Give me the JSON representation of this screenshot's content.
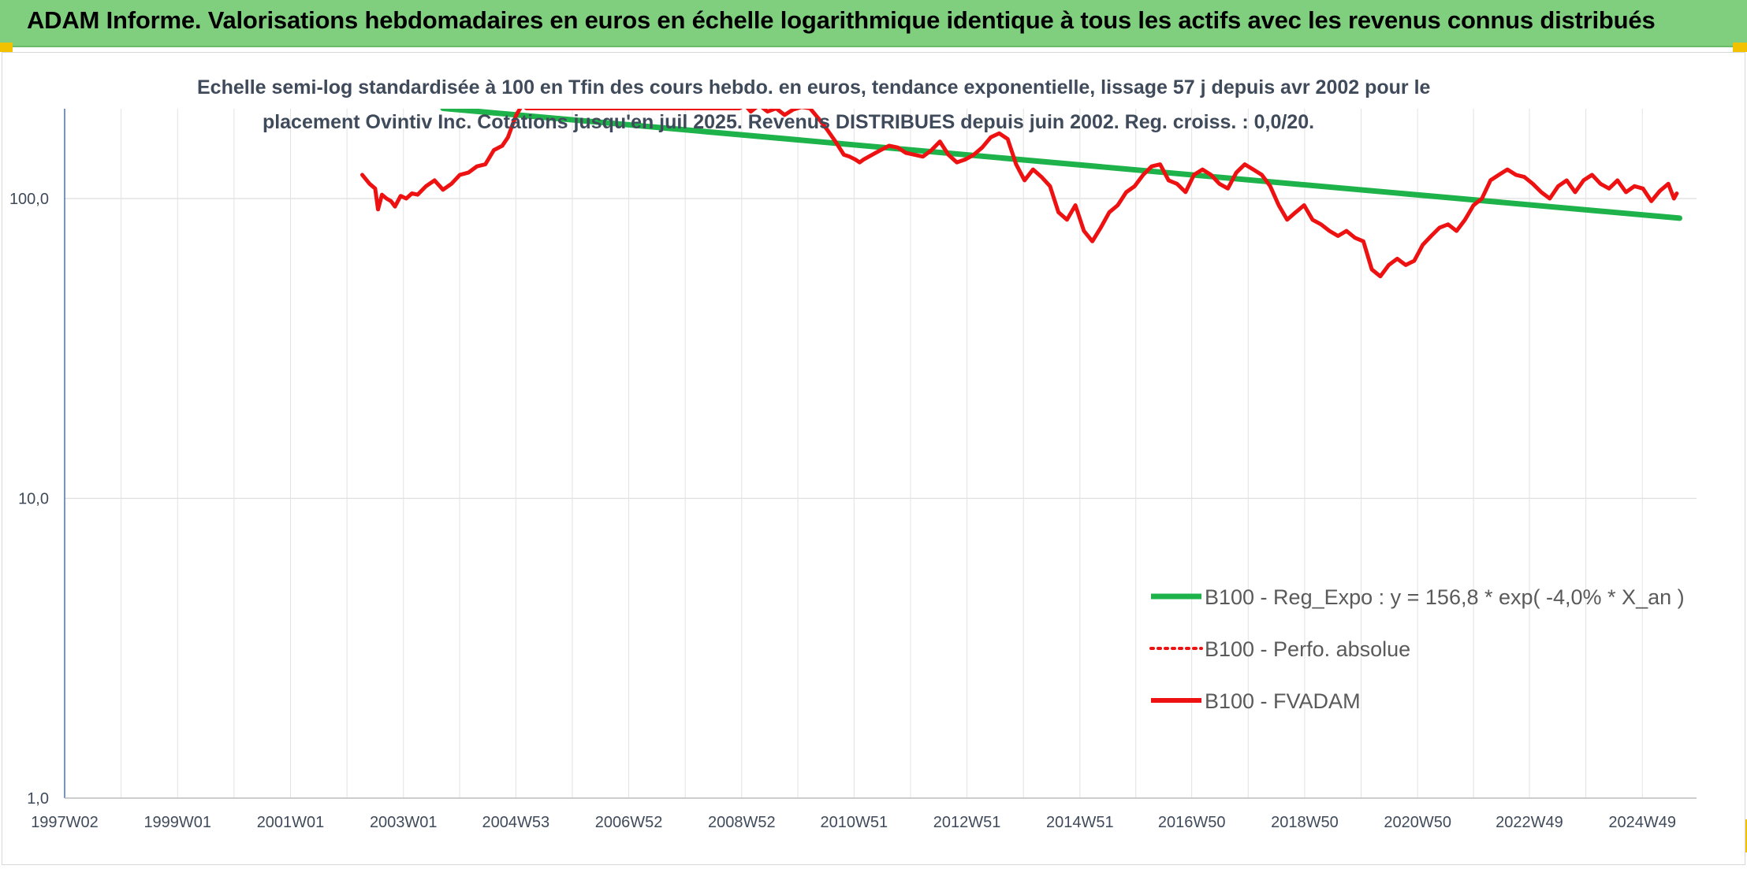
{
  "banner": {
    "title": "ADAM Informe. Valorisations hebdomadaires en euros en échelle logarithmique identique à tous les actifs avec les revenus connus distribués"
  },
  "colors": {
    "banner": "#7fcf7f",
    "trend": "#1db34a",
    "fvadam": "#ee1111",
    "perfo": "#ee1111",
    "grid": "#dddddd",
    "accent": "#f2c200"
  },
  "chart_data": {
    "type": "line",
    "title_line1": "Echelle semi-log standardisée à 100 en Tfin des cours hebdo. en euros, tendance exponentielle, lissage 57 j depuis avr 2002 pour le",
    "title_line2": "placement Ovintiv Inc. Cotations jusqu'en juil 2025. Revenus DISTRIBUES depuis juin 2002. Reg. croiss. : 0,0/20.",
    "y_scale": "log",
    "ylim": [
      1,
      200
    ],
    "xlim": [
      1997.0,
      2025.9
    ],
    "grid": true,
    "legend_position": "bottom-right",
    "y_tick_values": [
      100,
      10,
      1
    ],
    "y_tick_labels": [
      "100,0",
      "10,0",
      "1,0"
    ],
    "x_tick_values": [
      1997.0,
      1999.0,
      2001.0,
      2003.0,
      2004.99,
      2006.99,
      2008.99,
      2010.98,
      2012.98,
      2014.98,
      2016.96,
      2018.96,
      2020.96,
      2022.94,
      2024.94
    ],
    "x_tick_labels": [
      "1997W02",
      "1999W01",
      "2001W01",
      "2003W01",
      "2004W53",
      "2006W52",
      "2008W52",
      "2010W51",
      "2012W51",
      "2014W51",
      "2016W50",
      "2018W50",
      "2020W50",
      "2022W49",
      "2024W49"
    ],
    "legend": [
      {
        "key": "trend",
        "label": "B100 - Reg_Expo : y = 156,8 * exp( -4,0% *  X_an )",
        "style": "solid-thick"
      },
      {
        "key": "perfo",
        "label": "B100 - Perfo. absolue",
        "style": "dotted"
      },
      {
        "key": "fvadam",
        "label": "B100 - FVADAM",
        "style": "solid"
      }
    ],
    "series": [
      {
        "key": "trend",
        "name": "B100 - Reg_Expo : y = 156,8 * exp( -4,0% *  X_an )",
        "x": [
          2003.7,
          2025.6
        ],
        "y": [
          200,
          86
        ]
      },
      {
        "key": "fvadam",
        "name": "B100 - FVADAM",
        "x": [
          2002.27,
          2002.4,
          2002.5,
          2002.55,
          2002.62,
          2002.7,
          2002.78,
          2002.85,
          2002.95,
          2003.05,
          2003.15,
          2003.25,
          2003.4,
          2003.55,
          2003.7,
          2003.85,
          2004.0,
          2004.15,
          2004.3,
          2004.45,
          2004.6,
          2004.75,
          2004.85,
          2004.95,
          2005.0,
          2005.1,
          2005.18,
          2005.22,
          2008.95,
          2009.05,
          2009.15,
          2009.3,
          2009.45,
          2009.6,
          2009.75,
          2009.9,
          2010.05,
          2010.2,
          2010.35,
          2010.5,
          2010.65,
          2010.8,
          2010.9,
          2011.0,
          2011.08,
          2011.15,
          2011.3,
          2011.45,
          2011.6,
          2011.75,
          2011.9,
          2012.05,
          2012.2,
          2012.35,
          2012.5,
          2012.65,
          2012.8,
          2012.95,
          2013.1,
          2013.25,
          2013.4,
          2013.55,
          2013.7,
          2013.85,
          2014.0,
          2014.15,
          2014.3,
          2014.45,
          2014.6,
          2014.75,
          2014.9,
          2015.05,
          2015.2,
          2015.35,
          2015.5,
          2015.65,
          2015.8,
          2015.95,
          2016.1,
          2016.25,
          2016.4,
          2016.55,
          2016.7,
          2016.85,
          2017.0,
          2017.15,
          2017.3,
          2017.45,
          2017.6,
          2017.75,
          2017.9,
          2018.05,
          2018.2,
          2018.35,
          2018.5,
          2018.65,
          2018.8,
          2018.95,
          2019.1,
          2019.25,
          2019.4,
          2019.55,
          2019.7,
          2019.85,
          2020.0,
          2020.15,
          2020.3,
          2020.45,
          2020.6,
          2020.75,
          2020.9,
          2021.05,
          2021.2,
          2021.35,
          2021.5,
          2021.65,
          2021.8,
          2021.95,
          2022.1,
          2022.25,
          2022.4,
          2022.55,
          2022.7,
          2022.85,
          2023.0,
          2023.15,
          2023.3,
          2023.45,
          2023.6,
          2023.75,
          2023.9,
          2024.05,
          2024.2,
          2024.35,
          2024.5,
          2024.65,
          2024.8,
          2024.95,
          2025.1,
          2025.25,
          2025.4,
          2025.5,
          2025.55
        ],
        "y": [
          120,
          112,
          108,
          92,
          103,
          100,
          98,
          94,
          102,
          100,
          104,
          103,
          110,
          115,
          107,
          112,
          120,
          122,
          128,
          130,
          145,
          150,
          160,
          180,
          190,
          205,
          200,
          200,
          200,
          205,
          195,
          205,
          195,
          200,
          190,
          198,
          202,
          200,
          185,
          170,
          155,
          140,
          138,
          135,
          132,
          135,
          140,
          145,
          150,
          148,
          142,
          140,
          138,
          145,
          155,
          140,
          132,
          135,
          140,
          148,
          160,
          165,
          158,
          130,
          115,
          125,
          118,
          110,
          90,
          85,
          95,
          78,
          72,
          80,
          90,
          95,
          105,
          110,
          120,
          128,
          130,
          115,
          112,
          105,
          120,
          125,
          120,
          112,
          108,
          122,
          130,
          125,
          120,
          110,
          95,
          85,
          90,
          95,
          85,
          82,
          78,
          75,
          78,
          74,
          72,
          58,
          55,
          60,
          63,
          60,
          62,
          70,
          75,
          80,
          82,
          78,
          85,
          95,
          100,
          115,
          120,
          125,
          120,
          118,
          112,
          105,
          100,
          110,
          115,
          105,
          115,
          120,
          112,
          108,
          115,
          105,
          110,
          108,
          98,
          106,
          112,
          100,
          104
        ]
      }
    ]
  }
}
